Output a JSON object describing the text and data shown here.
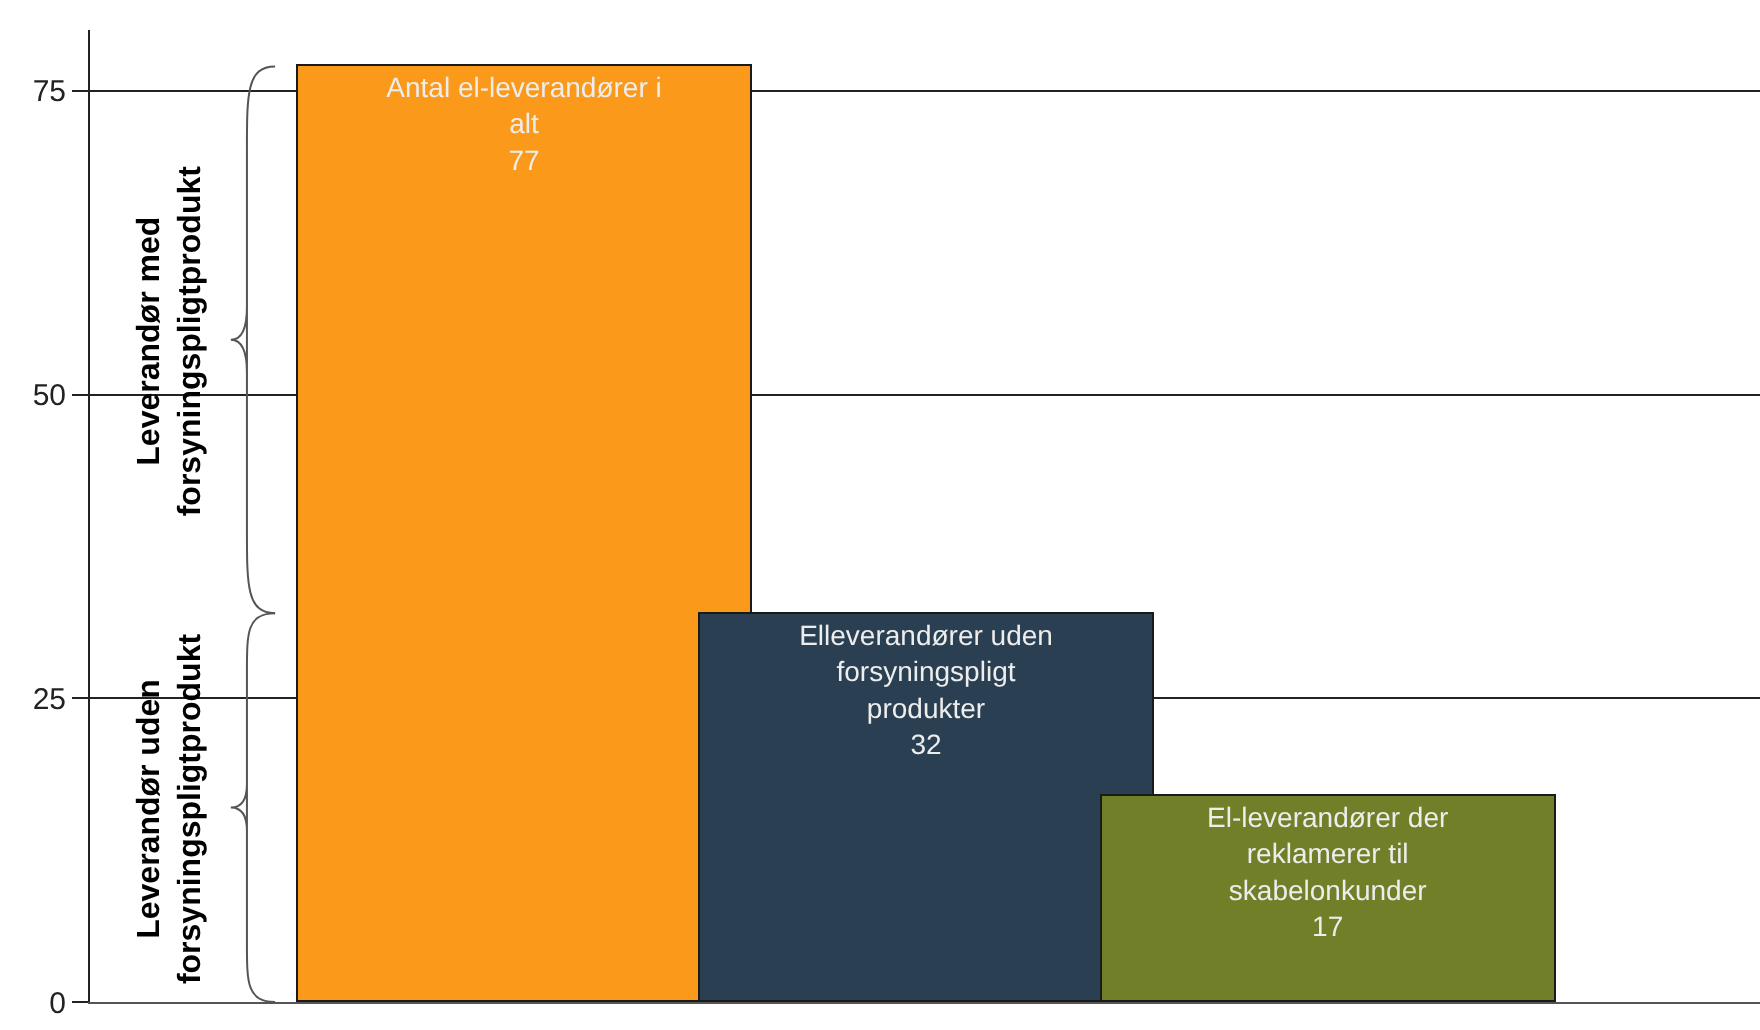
{
  "chart_data": {
    "type": "bar",
    "categories": [
      null,
      null,
      null
    ],
    "values": [
      77,
      32,
      17
    ],
    "colors": [
      "#fb9a1a",
      "#2a4052",
      "#718028"
    ],
    "value_labels": [
      "Antal el-leverandører i\nalt\n77",
      "Elleverandører uden\nforsyningspligt\nprodukter\n32",
      "El-leverandører der\nreklamerer til\nskabelonkunder\n17"
    ],
    "ylim": [
      0,
      80
    ],
    "yticks": [
      0,
      25,
      50,
      75
    ],
    "grid": "y",
    "annotations": [
      "Leverandør med\nforsyningspligtprodukt",
      "Leverandør uden\nforsyningspligtprodukt"
    ]
  }
}
